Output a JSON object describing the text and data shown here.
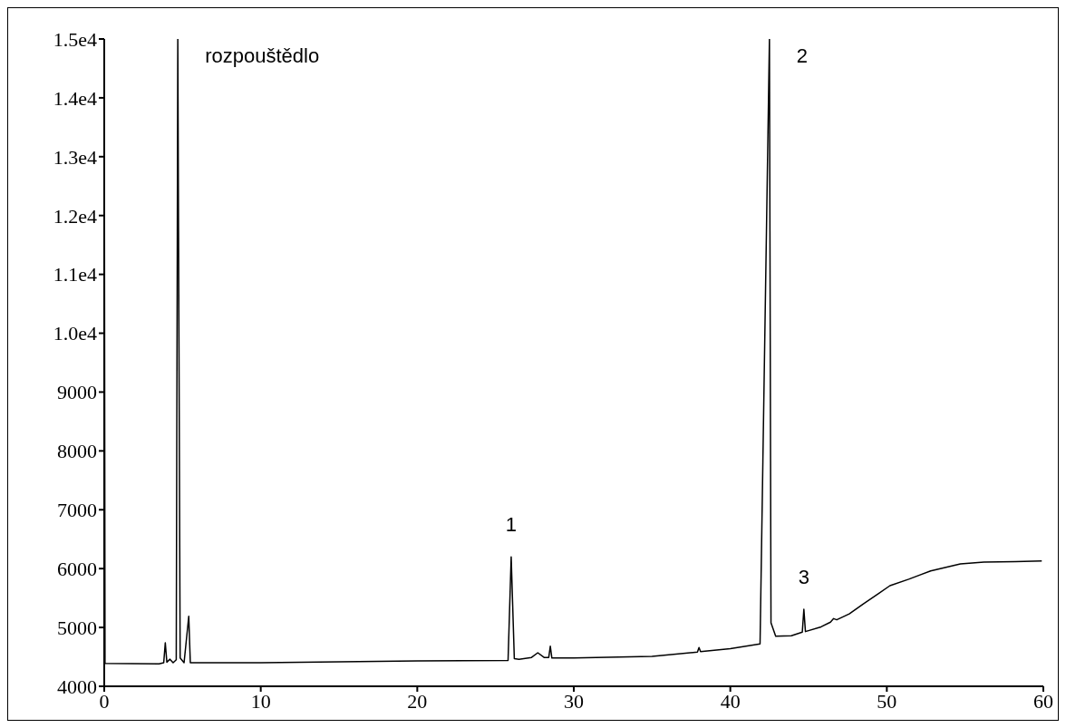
{
  "chart_data": {
    "type": "line",
    "x": [
      0,
      0.05,
      3.5,
      3.8,
      3.9,
      4.0,
      4.2,
      4.4,
      4.6,
      4.7,
      4.85,
      5.1,
      5.4,
      5.5,
      10,
      20,
      25.8,
      26.0,
      26.2,
      26.5,
      27.3,
      27.7,
      28.1,
      28.4,
      28.5,
      28.6,
      30,
      35,
      37.9,
      38.0,
      38.1,
      40,
      41.9,
      42.5,
      42.6,
      42.9,
      43.9,
      44.6,
      44.7,
      44.8,
      45.8,
      46.4,
      46.6,
      46.8,
      47.6,
      48.5,
      49.5,
      50.2,
      51.4,
      52.8,
      54.7,
      56.2,
      58.2,
      59.9
    ],
    "series": [
      {
        "color": "#000000",
        "values": [
          15000,
          4390,
          4380,
          4400,
          4740,
          4410,
          4460,
          4400,
          4450,
          15000,
          4480,
          4400,
          5190,
          4400,
          4400,
          4430,
          4440,
          6200,
          4470,
          4460,
          4490,
          4570,
          4490,
          4490,
          4680,
          4480,
          4480,
          4510,
          4580,
          4660,
          4590,
          4640,
          4720,
          15000,
          5080,
          4850,
          4860,
          4920,
          5310,
          4930,
          5010,
          5090,
          5150,
          5130,
          5230,
          5400,
          5580,
          5710,
          5820,
          5960,
          6080,
          6110,
          6120,
          6130
        ]
      }
    ],
    "xlim": [
      0,
      60
    ],
    "xticks": [
      0,
      10,
      20,
      30,
      40,
      50,
      60
    ],
    "ylim": [
      4000,
      15000
    ],
    "yticks": [
      {
        "value": 15000,
        "label": "1.5e4"
      },
      {
        "value": 14000,
        "label": "1.4e4"
      },
      {
        "value": 13000,
        "label": "1.3e4"
      },
      {
        "value": 12000,
        "label": "1.2e4"
      },
      {
        "value": 11000,
        "label": "1.1e4"
      },
      {
        "value": 10000,
        "label": "1.0e4"
      },
      9000,
      8000,
      7000,
      6000,
      5000,
      4000
    ],
    "annotations": [
      {
        "text": "rozpouštědlo",
        "x": 4.7,
        "y": 15000
      },
      {
        "text": "1",
        "x": 26.0,
        "y": 6200
      },
      {
        "text": "2",
        "x": 42.5,
        "y": 15000
      },
      {
        "text": "3",
        "x": 44.7,
        "y": 5310
      }
    ]
  }
}
